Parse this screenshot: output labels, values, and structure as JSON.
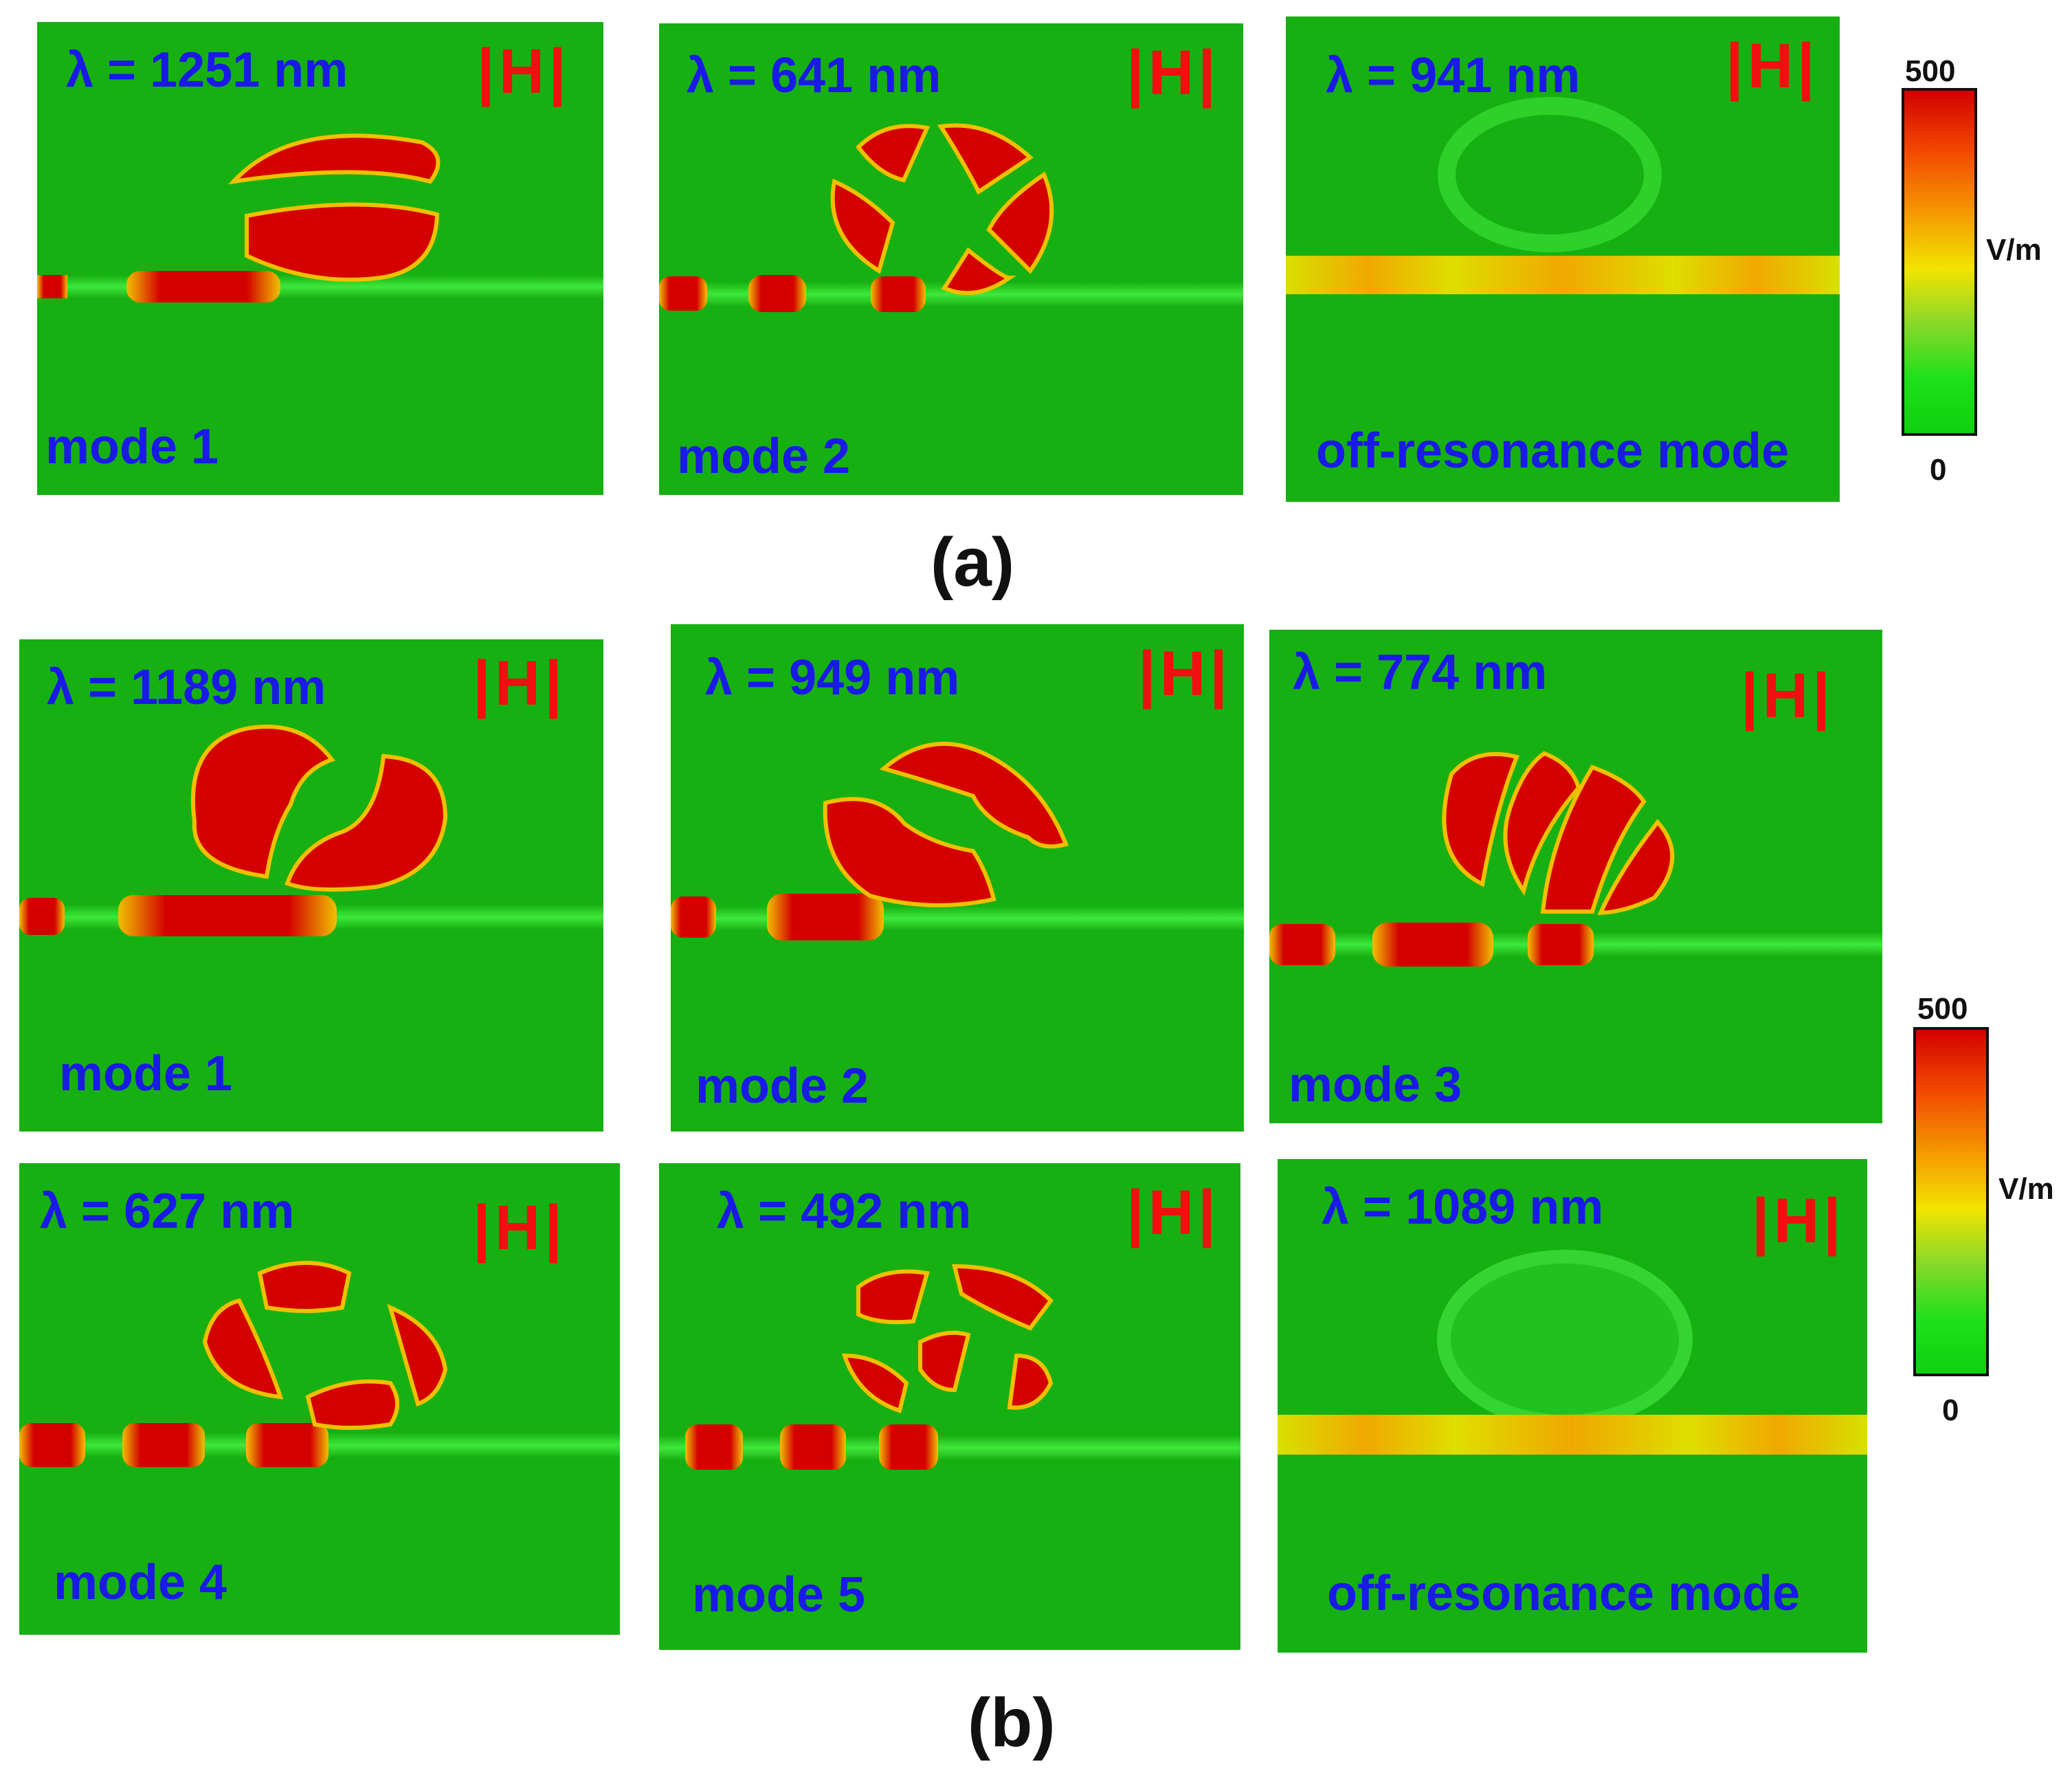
{
  "panels": [
    {
      "wavelength": "λ = 1251 nm",
      "mode": "mode 1",
      "field": "|H|"
    },
    {
      "wavelength": "λ = 641 nm",
      "mode": "mode 2",
      "field": "|H|"
    },
    {
      "wavelength": "λ = 941 nm",
      "mode": "off-resonance mode",
      "field": "|H|"
    },
    {
      "wavelength": "λ = 1189 nm",
      "mode": "mode 1",
      "field": "|H|"
    },
    {
      "wavelength": "λ = 949 nm",
      "mode": "mode 2",
      "field": "|H|"
    },
    {
      "wavelength": "λ = 774 nm",
      "mode": "mode 3",
      "field": "|H|"
    },
    {
      "wavelength": "λ = 627 nm",
      "mode": "mode 4",
      "field": "|H|"
    },
    {
      "wavelength": "λ = 492 nm",
      "mode": "mode 5",
      "field": "|H|"
    },
    {
      "wavelength": "λ = 1089 nm",
      "mode": "off-resonance mode",
      "field": "|H|"
    }
  ],
  "sublabels": {
    "a": "(a)",
    "b": "(b)"
  },
  "colorbars": [
    {
      "max": "500",
      "min": "0",
      "unit": "V/m"
    },
    {
      "max": "500",
      "min": "0",
      "unit": "V/m"
    }
  ],
  "colors": {
    "background": "#17b012",
    "hot": "#d40000",
    "label_text": "#1a1ae6",
    "field_label": "#f01010"
  }
}
